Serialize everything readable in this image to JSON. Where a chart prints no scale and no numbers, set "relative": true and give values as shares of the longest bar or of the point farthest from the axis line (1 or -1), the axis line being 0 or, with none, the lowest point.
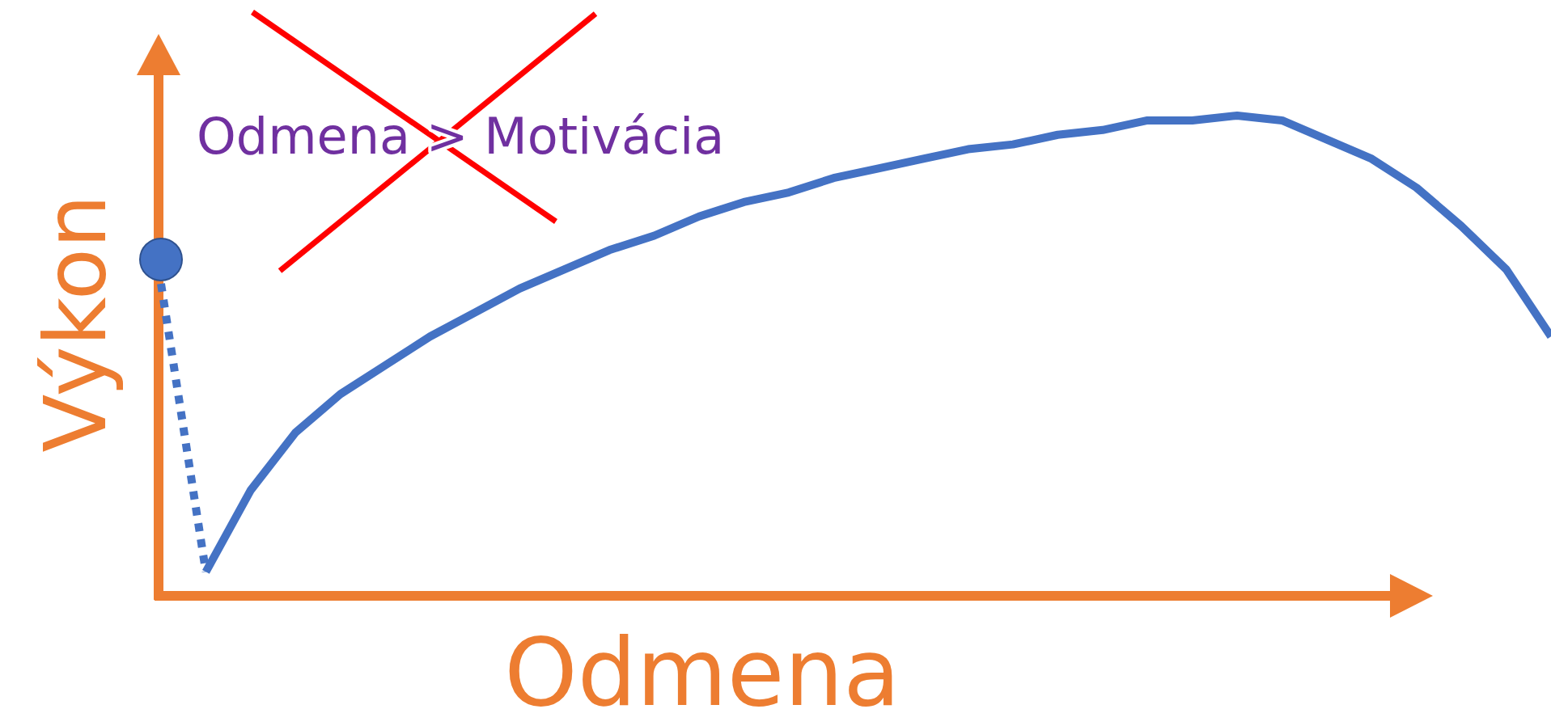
{
  "chart_data": {
    "type": "line",
    "relative": true,
    "xlabel": "Odmena",
    "ylabel": "Výkon",
    "annotations": [
      "Odmena > Motivácia"
    ],
    "categories": [
      null,
      null,
      null,
      null,
      null,
      null,
      null,
      null,
      null,
      null,
      null,
      null,
      null,
      null,
      null,
      null,
      null,
      null,
      null,
      null,
      null,
      null,
      null,
      null,
      null,
      null,
      null,
      null,
      null,
      null,
      null,
      null
    ],
    "series": [
      {
        "color": "#4472c4",
        "line_style": "solid",
        "marker": "none",
        "values": [
          null,
          0.05,
          0.22,
          0.34,
          0.42,
          0.48,
          0.54,
          0.59,
          0.64,
          0.68,
          0.72,
          0.75,
          0.79,
          0.82,
          0.84,
          0.87,
          0.89,
          0.91,
          0.93,
          0.94,
          0.96,
          0.97,
          0.99,
          0.99,
          1,
          0.99,
          0.95,
          0.91,
          0.85,
          0.77,
          0.68,
          0.54
        ]
      },
      {
        "color": "#4472c4",
        "line_style": "dotted",
        "marker": "none",
        "values": [
          0.65,
          0.05,
          null,
          null,
          null,
          null,
          null,
          null,
          null,
          null,
          null,
          null,
          null,
          null,
          null,
          null,
          null,
          null,
          null,
          null,
          null,
          null,
          null,
          null,
          null,
          null,
          null,
          null,
          null,
          null,
          null,
          null
        ]
      }
    ]
  }
}
